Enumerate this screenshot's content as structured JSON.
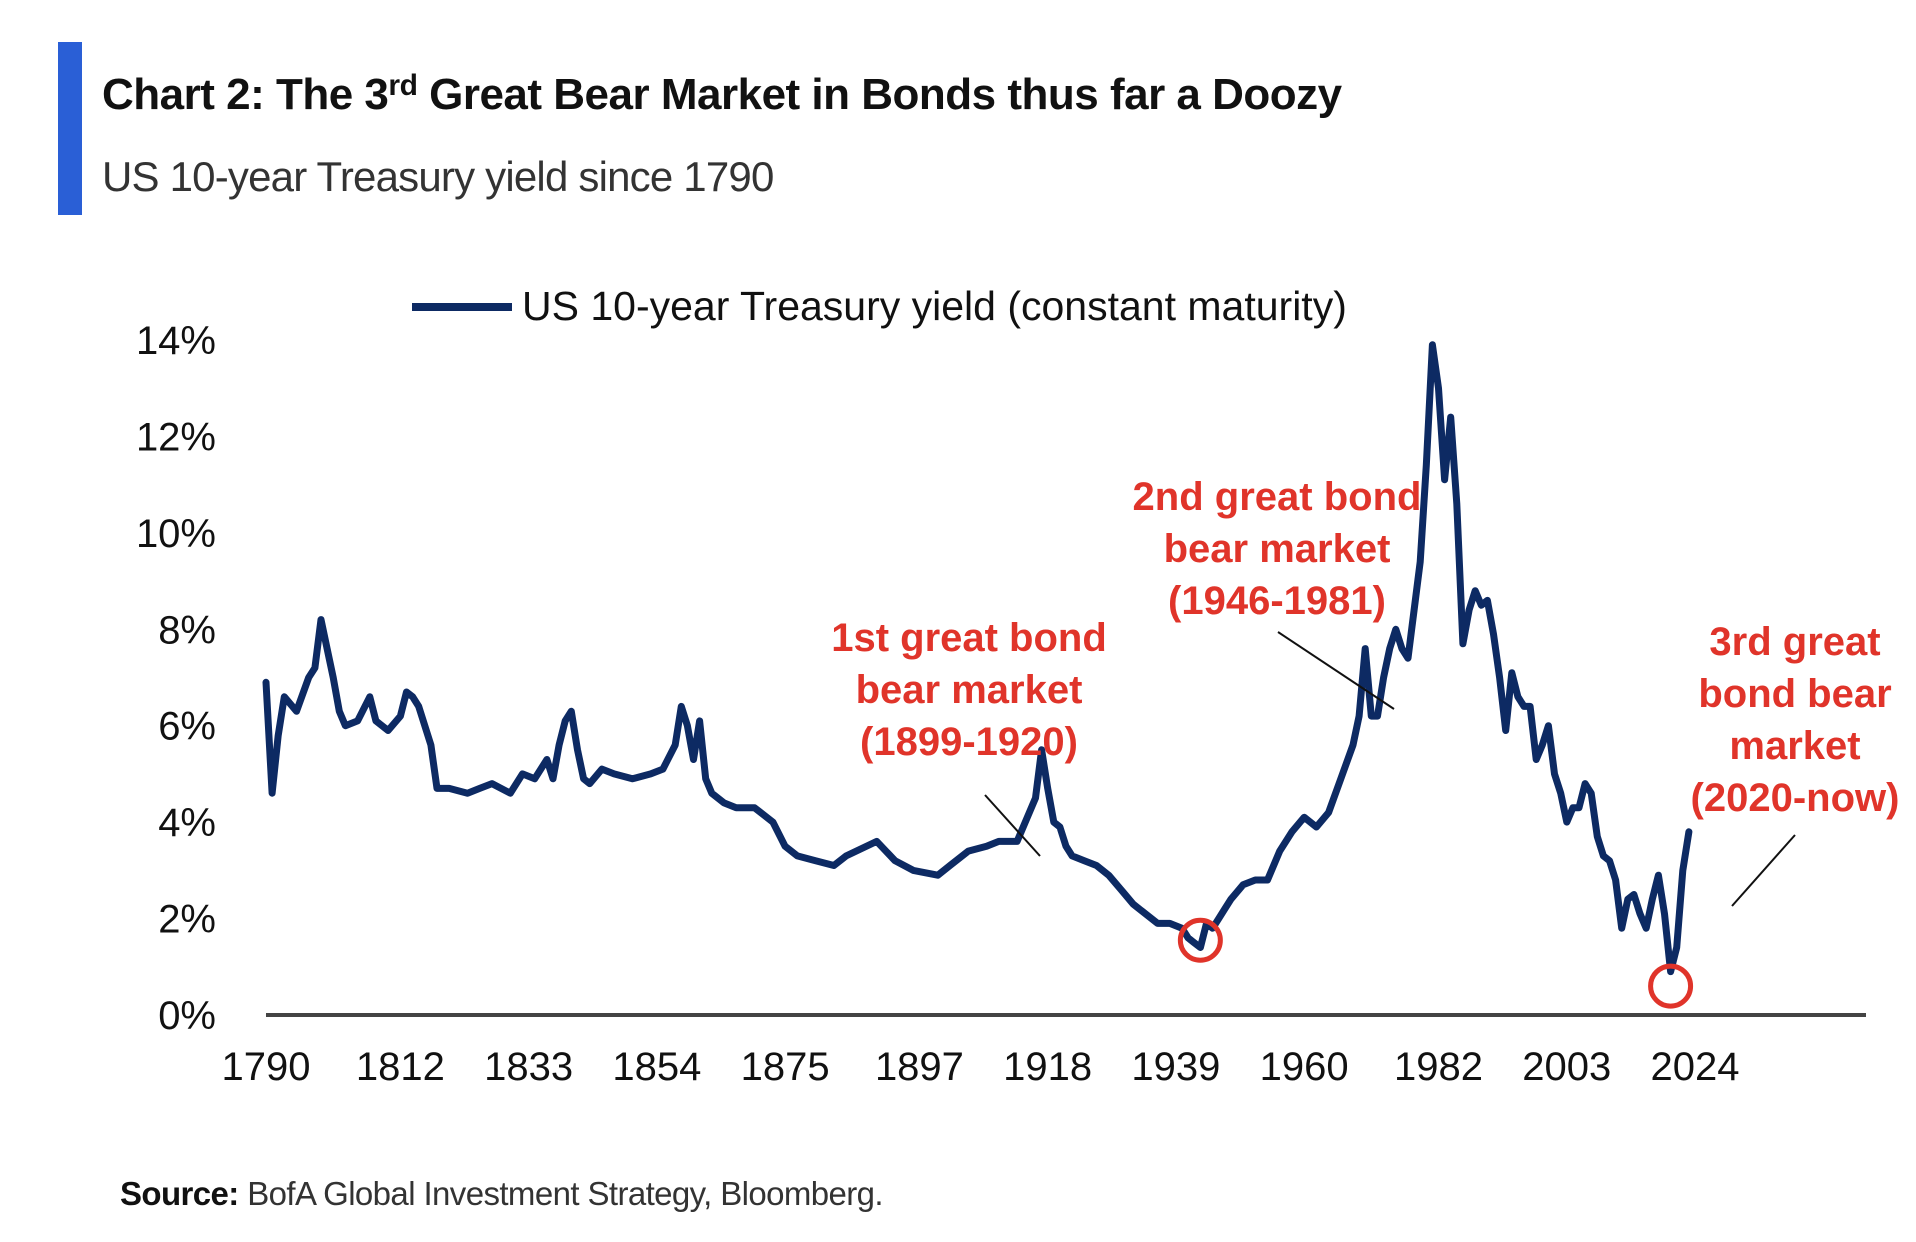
{
  "header": {
    "title_prefix": "Chart 2: The 3",
    "title_superscript": "rd",
    "title_suffix": " Great Bear Market in Bonds thus far a Doozy",
    "subtitle": "US 10-year Treasury yield since 1790",
    "accent_color": "#2a5fd6"
  },
  "footer": {
    "source_label": "Source:",
    "source_text": " BofA Global Investment Strategy, Bloomberg."
  },
  "chart_data": {
    "type": "line",
    "title": "Chart 2: The 3rd Great Bear Market in Bonds thus far a Doozy",
    "subtitle": "US 10-year Treasury yield since 1790",
    "xlabel": "",
    "ylabel": "",
    "x_ticks": [
      "1790",
      "1812",
      "1833",
      "1854",
      "1875",
      "1897",
      "1918",
      "1939",
      "1960",
      "1982",
      "2003",
      "2024"
    ],
    "y_ticks": [
      "0%",
      "2%",
      "4%",
      "6%",
      "8%",
      "10%",
      "12%",
      "14%"
    ],
    "xlim": [
      1790,
      2052
    ],
    "ylim": [
      0,
      14
    ],
    "grid": false,
    "legend_position": "top-center",
    "line_color": "#0d2a63",
    "annotation_color": "#e0342a",
    "series": [
      {
        "name": "US 10-year Treasury yield (constant maturity)",
        "x": [
          1790,
          1791,
          1792,
          1793,
          1795,
          1797,
          1798,
          1799,
          1800,
          1801,
          1802,
          1803,
          1805,
          1807,
          1808,
          1810,
          1812,
          1813,
          1814,
          1815,
          1817,
          1818,
          1820,
          1823,
          1825,
          1827,
          1830,
          1832,
          1834,
          1836,
          1837,
          1838,
          1839,
          1840,
          1841,
          1842,
          1843,
          1845,
          1847,
          1850,
          1853,
          1855,
          1857,
          1858,
          1859,
          1860,
          1861,
          1862,
          1863,
          1865,
          1867,
          1870,
          1873,
          1875,
          1877,
          1880,
          1883,
          1885,
          1890,
          1893,
          1896,
          1900,
          1902,
          1905,
          1908,
          1910,
          1913,
          1916,
          1917,
          1918,
          1919,
          1920,
          1921,
          1922,
          1924,
          1926,
          1928,
          1930,
          1932,
          1934,
          1936,
          1938,
          1940,
          1941,
          1942,
          1943,
          1944,
          1945,
          1946,
          1947,
          1948,
          1950,
          1952,
          1954,
          1956,
          1958,
          1960,
          1962,
          1964,
          1966,
          1968,
          1969,
          1970,
          1971,
          1972,
          1973,
          1974,
          1975,
          1976,
          1977,
          1978,
          1979,
          1980,
          1981,
          1982,
          1983,
          1984,
          1985,
          1986,
          1987,
          1988,
          1989,
          1990,
          1991,
          1992,
          1993,
          1994,
          1995,
          1996,
          1997,
          1998,
          1999,
          2000,
          2001,
          2002,
          2003,
          2004,
          2005,
          2006,
          2007,
          2008,
          2009,
          2010,
          2011,
          2012,
          2013,
          2014,
          2015,
          2016,
          2017,
          2018,
          2019,
          2020,
          2021,
          2022,
          2023
        ],
        "values": [
          6.9,
          4.6,
          5.8,
          6.6,
          6.3,
          7.0,
          7.2,
          8.2,
          7.6,
          7.0,
          6.3,
          6.0,
          6.1,
          6.6,
          6.1,
          5.9,
          6.2,
          6.7,
          6.6,
          6.4,
          5.6,
          4.7,
          4.7,
          4.6,
          4.7,
          4.8,
          4.6,
          5.0,
          4.9,
          5.3,
          4.9,
          5.6,
          6.1,
          6.3,
          5.5,
          4.9,
          4.8,
          5.1,
          5.0,
          4.9,
          5.0,
          5.1,
          5.6,
          6.4,
          6.0,
          5.3,
          6.1,
          4.9,
          4.6,
          4.4,
          4.3,
          4.3,
          4.0,
          3.5,
          3.3,
          3.2,
          3.1,
          3.3,
          3.6,
          3.2,
          3.0,
          2.9,
          3.1,
          3.4,
          3.5,
          3.6,
          3.6,
          4.5,
          5.5,
          4.7,
          4.0,
          3.9,
          3.5,
          3.3,
          3.2,
          3.1,
          2.9,
          2.6,
          2.3,
          2.1,
          1.9,
          1.9,
          1.8,
          1.6,
          1.5,
          1.4,
          1.9,
          1.8,
          2.0,
          2.2,
          2.4,
          2.7,
          2.8,
          2.8,
          3.4,
          3.8,
          4.1,
          3.9,
          4.2,
          4.9,
          5.6,
          6.2,
          7.6,
          6.2,
          6.2,
          7.0,
          7.6,
          8.0,
          7.6,
          7.4,
          8.4,
          9.4,
          11.4,
          13.9,
          13.0,
          11.1,
          12.4,
          10.6,
          7.7,
          8.4,
          8.8,
          8.5,
          8.6,
          7.9,
          7.0,
          5.9,
          7.1,
          6.6,
          6.4,
          6.4,
          5.3,
          5.6,
          6.0,
          5.0,
          4.6,
          4.0,
          4.3,
          4.3,
          4.8,
          4.6,
          3.7,
          3.3,
          3.2,
          2.8,
          1.8,
          2.4,
          2.5,
          2.1,
          1.8,
          2.4,
          2.9,
          2.1,
          0.9,
          1.4,
          3.0,
          3.8
        ]
      }
    ],
    "annotations": [
      {
        "lines": [
          "1st great bond",
          "bear market",
          "(1899-1920)"
        ]
      },
      {
        "lines": [
          "2nd great bond",
          "bear market",
          "(1946-1981)"
        ]
      },
      {
        "lines": [
          "3rd great",
          "bond bear",
          "market",
          "(2020-now)"
        ]
      }
    ]
  }
}
